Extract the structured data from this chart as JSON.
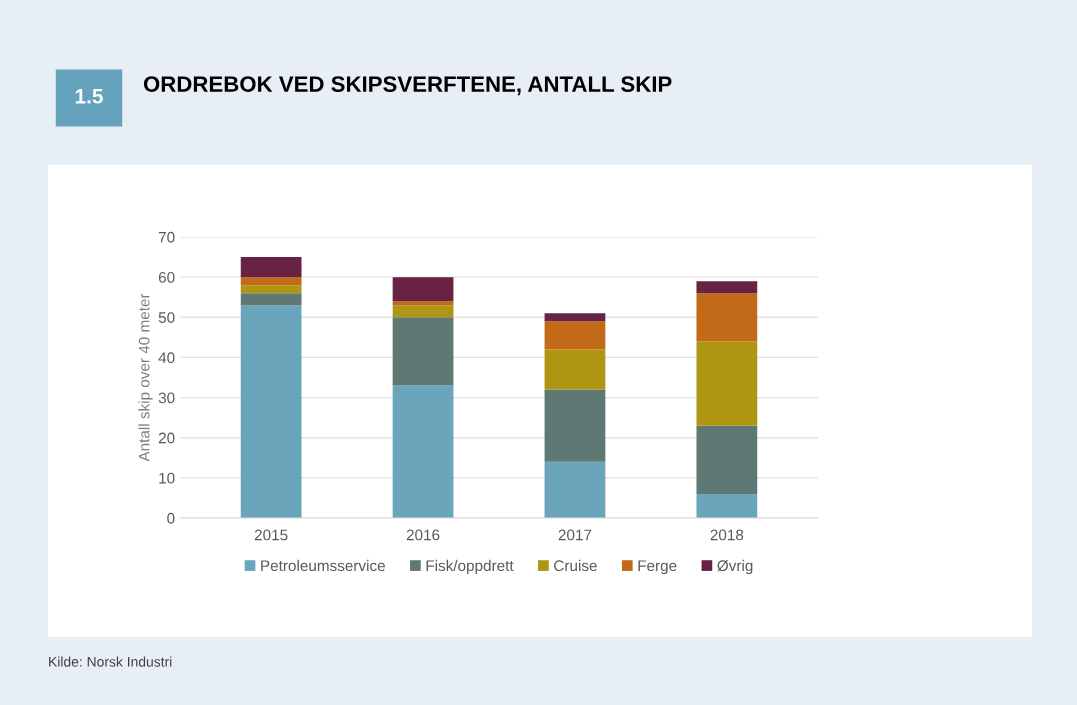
{
  "chart_data": {
    "type": "bar",
    "title": "ORDREBOK VED SKIPSVERFTENE, ANTALL SKIP",
    "ylabel": "Antall skip over 40 meter",
    "categories": [
      "2015",
      "2016",
      "2017",
      "2018"
    ],
    "stacked": true,
    "series": [
      {
        "name": "Petroleumsservice",
        "color": "#6aa5bb",
        "values": [
          53,
          33,
          14,
          6
        ]
      },
      {
        "name": "Fisk/oppdrett",
        "color": "#5e7873",
        "values": [
          3,
          17,
          18,
          17
        ]
      },
      {
        "name": "Cruise",
        "color": "#ae9612",
        "values": [
          2,
          3,
          10,
          21
        ]
      },
      {
        "name": "Ferge",
        "color": "#c26a18",
        "values": [
          2,
          1,
          7,
          12
        ]
      },
      {
        "name": "Øvrig",
        "color": "#682244",
        "values": [
          5,
          6,
          2,
          3
        ]
      }
    ],
    "ylim": [
      0,
      70
    ],
    "yticks": [
      0,
      10,
      20,
      30,
      40,
      50,
      60,
      70
    ],
    "grid": "y",
    "legend": "bottom",
    "annotations": [
      "1.5",
      "Kilde: Norsk Industri"
    ]
  }
}
